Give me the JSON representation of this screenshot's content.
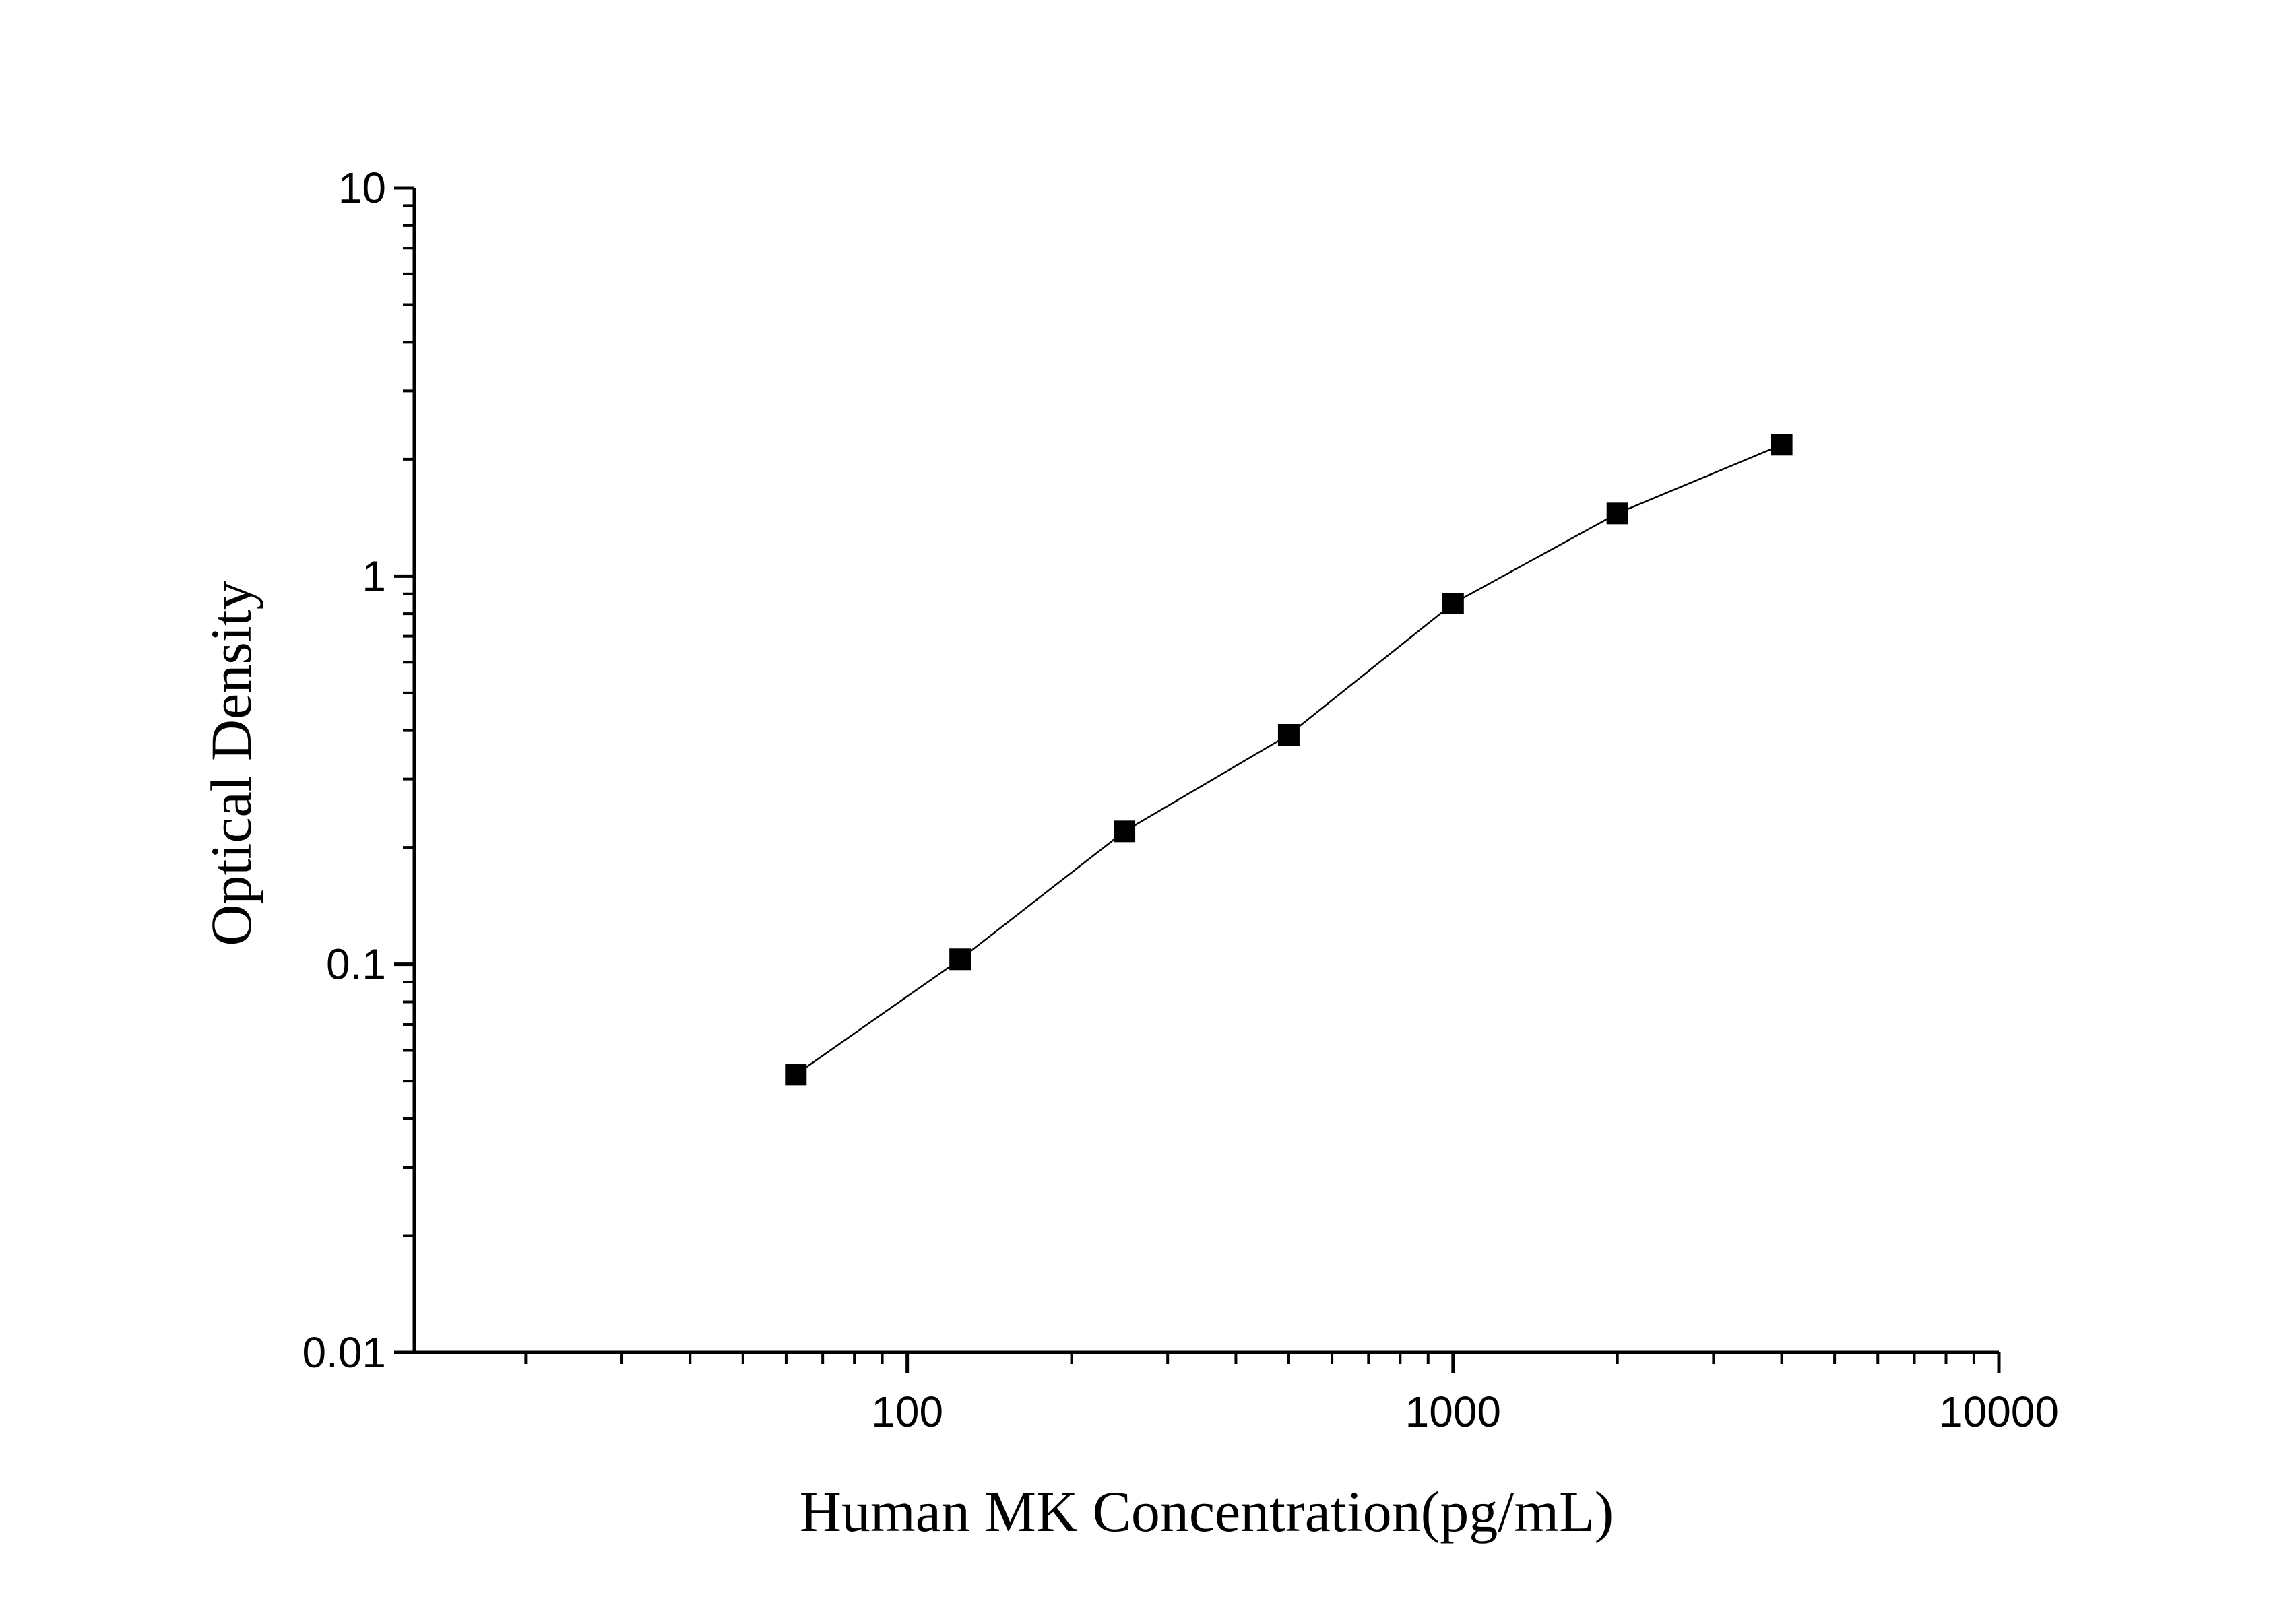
{
  "chart_data": {
    "type": "line",
    "title": "",
    "xlabel": "Human MK Concentration(pg/mL)",
    "ylabel": "Optical Density",
    "x_scale": "log",
    "y_scale": "log",
    "xlim": [
      12.5,
      10000
    ],
    "ylim": [
      0.01,
      10
    ],
    "x_ticks": [
      100,
      1000,
      10000
    ],
    "x_tick_labels": [
      "100",
      "1000",
      "10000"
    ],
    "y_ticks": [
      0.01,
      0.1,
      1,
      10
    ],
    "y_tick_labels": [
      "0.01",
      "0.1",
      "1",
      "10"
    ],
    "grid": false,
    "legend": "none",
    "marker": "square",
    "color": "#000000",
    "series": [
      {
        "x": [
          62.5,
          125,
          250,
          500,
          1000,
          2000,
          4000
        ],
        "y": [
          0.052,
          0.103,
          0.22,
          0.39,
          0.85,
          1.45,
          2.18
        ]
      }
    ]
  }
}
